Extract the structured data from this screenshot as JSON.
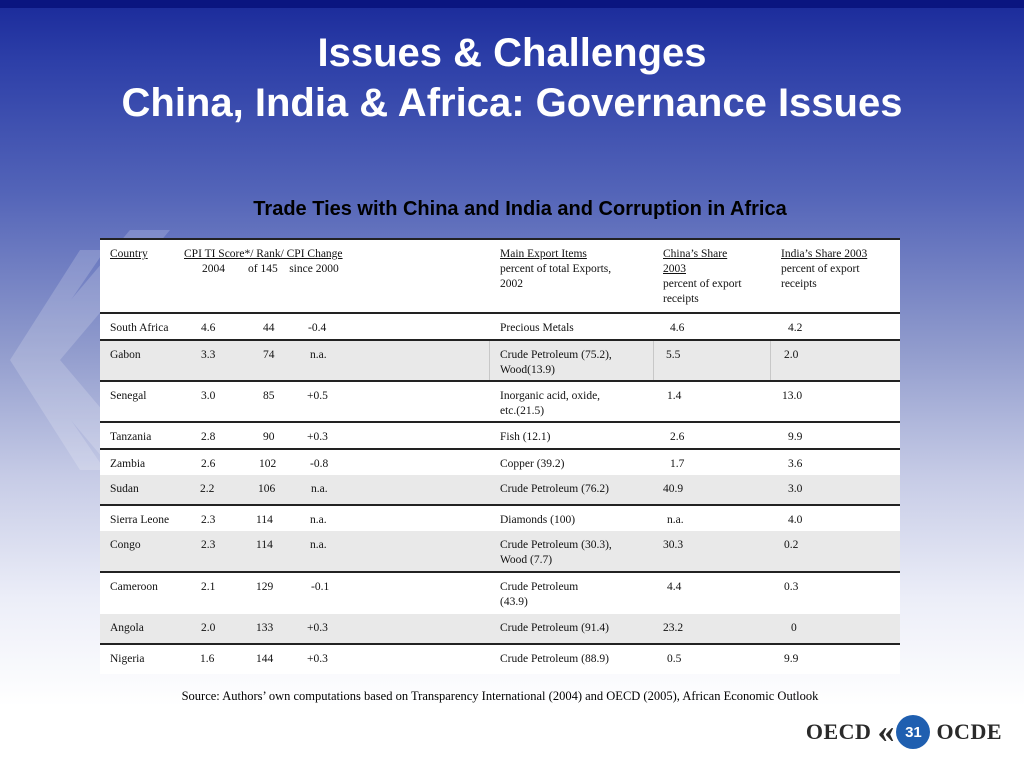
{
  "slide": {
    "title_line1": "Issues & Challenges",
    "title_line2": "China, India & Africa: Governance Issues",
    "table_title": "Trade Ties with China and India and Corruption in Africa",
    "source": "Source: Authors’ own computations based on Transparency International (2004) and OECD (2005), African Economic Outlook",
    "page_number": "31",
    "logo_left": "OECD",
    "logo_right": "OCDE"
  },
  "table": {
    "headers": {
      "country": "Country",
      "cpi_line1": "CPI TI Score*/ Rank/ CPI Change",
      "cpi_line2": "2004        of 145    since 2000",
      "exports_line1": "Main Export Items",
      "exports_line2": "percent of total Exports,",
      "exports_line3": "2002",
      "china_line1": "China’s Share",
      "china_line2": "2003",
      "china_line3": "percent of export",
      "china_line4": "receipts",
      "india_line1": "India’s Share 2003",
      "india_line2": "percent of export",
      "india_line3": "receipts"
    },
    "rows": [
      {
        "country": "South Africa",
        "score": "4.6",
        "rank": "44",
        "change": "-0.4",
        "export1": "Precious Metals",
        "export2": "",
        "china": "4.6",
        "india": "4.2"
      },
      {
        "country": "Gabon",
        "score": "3.3",
        "rank": "74",
        "change": "n.a.",
        "export1": "Crude Petroleum (75.2),",
        "export2": "Wood(13.9)",
        "china": "5.5",
        "india": "2.0"
      },
      {
        "country": "Senegal",
        "score": "3.0",
        "rank": "85",
        "change": "+0.5",
        "export1": "Inorganic acid, oxide,",
        "export2": "etc.(21.5)",
        "china": "1.4",
        "india": "13.0"
      },
      {
        "country": "Tanzania",
        "score": "2.8",
        "rank": "90",
        "change": "+0.3",
        "export1": "Fish (12.1)",
        "export2": "",
        "china": "2.6",
        "india": "9.9"
      },
      {
        "country": "Zambia",
        "score": "2.6",
        "rank": "102",
        "change": "-0.8",
        "export1": "Copper (39.2)",
        "export2": "",
        "china": "1.7",
        "india": "3.6"
      },
      {
        "country": "Sudan",
        "score": "2.2",
        "rank": "106",
        "change": "n.a.",
        "export1": "Crude Petroleum (76.2)",
        "export2": "",
        "china": "40.9",
        "india": "3.0"
      },
      {
        "country": "Sierra Leone",
        "score": "2.3",
        "rank": "114",
        "change": "n.a.",
        "export1": "Diamonds (100)",
        "export2": "",
        "china": "n.a.",
        "india": "4.0"
      },
      {
        "country": "Congo",
        "score": "2.3",
        "rank": "114",
        "change": "n.a.",
        "export1": "Crude Petroleum (30.3),",
        "export2": "Wood (7.7)",
        "china": "30.3",
        "india": "0.2"
      },
      {
        "country": "Cameroon",
        "score": "2.1",
        "rank": "129",
        "change": "-0.1",
        "export1": "Crude Petroleum",
        "export2": "(43.9)",
        "china": "4.4",
        "india": "0.3"
      },
      {
        "country": "Angola",
        "score": "2.0",
        "rank": "133",
        "change": "+0.3",
        "export1": "Crude Petroleum (91.4)",
        "export2": "",
        "china": "23.2",
        "india": "0"
      },
      {
        "country": "Nigeria",
        "score": "1.6",
        "rank": "144",
        "change": "+0.3",
        "export1": "Crude Petroleum (88.9)",
        "export2": "",
        "china": "0.5",
        "india": "9.9"
      }
    ]
  }
}
